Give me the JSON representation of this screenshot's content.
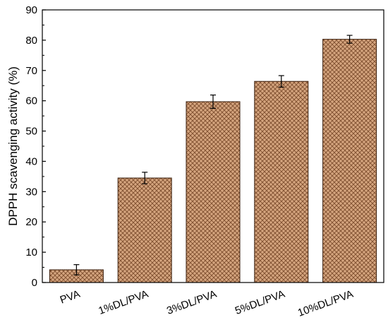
{
  "chart_data": {
    "type": "bar",
    "title": "",
    "xlabel": "",
    "ylabel": "DPPH scavenging activity (%)",
    "categories": [
      "PVA",
      "1%DL/PVA",
      "3%DL/PVA",
      "5%DL/PVA",
      "10%DL/PVA"
    ],
    "values": [
      4.2,
      34.5,
      59.7,
      66.4,
      80.3
    ],
    "errors": [
      1.7,
      1.9,
      2.2,
      1.9,
      1.3
    ],
    "ylim": [
      0,
      90
    ],
    "yticks": [
      0,
      10,
      20,
      30,
      40,
      50,
      60,
      70,
      80,
      90
    ],
    "grid": false,
    "bar_fill": "#d4a47e",
    "bar_hatch_color": "#7a4a2a",
    "bar_edge": "#3a1e0c"
  }
}
